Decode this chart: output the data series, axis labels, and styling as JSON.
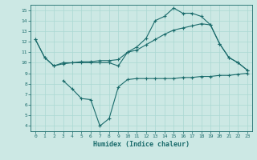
{
  "bg_color": "#cce8e4",
  "line_color": "#1a6b6b",
  "grid_color": "#aad8d2",
  "xlabel": "Humidex (Indice chaleur)",
  "xlim": [
    -0.5,
    23.5
  ],
  "ylim": [
    3.5,
    15.5
  ],
  "yticks": [
    4,
    5,
    6,
    7,
    8,
    9,
    10,
    11,
    12,
    13,
    14,
    15
  ],
  "xticks": [
    0,
    1,
    2,
    3,
    4,
    5,
    6,
    7,
    8,
    9,
    10,
    11,
    12,
    13,
    14,
    15,
    16,
    17,
    18,
    19,
    20,
    21,
    22,
    23
  ],
  "line1_x": [
    0,
    1,
    2,
    3,
    4,
    5,
    6,
    7,
    8,
    9,
    10,
    11,
    12,
    13,
    14,
    15,
    16,
    17,
    18,
    19,
    20,
    21,
    22,
    23
  ],
  "line1_y": [
    12.2,
    10.5,
    9.7,
    10.0,
    10.0,
    10.0,
    10.0,
    10.0,
    10.0,
    9.7,
    11.0,
    11.5,
    12.3,
    14.0,
    14.4,
    15.2,
    14.7,
    14.7,
    14.4,
    13.6,
    11.8,
    10.5,
    10.0,
    9.3
  ],
  "line2_x": [
    0,
    1,
    2,
    3,
    4,
    5,
    6,
    7,
    8,
    9,
    10,
    11,
    12,
    13,
    14,
    15,
    16,
    17,
    18,
    19,
    20,
    21,
    22,
    23
  ],
  "line2_y": [
    12.2,
    10.5,
    9.7,
    9.9,
    10.0,
    10.1,
    10.1,
    10.2,
    10.2,
    10.3,
    11.0,
    11.2,
    11.7,
    12.2,
    12.7,
    13.1,
    13.3,
    13.5,
    13.7,
    13.6,
    11.8,
    10.5,
    10.0,
    9.3
  ],
  "line3_x": [
    3,
    4,
    5,
    6,
    7,
    8,
    9,
    10,
    11,
    12,
    13,
    14,
    15,
    16,
    17,
    18,
    19,
    20,
    21,
    22,
    23
  ],
  "line3_y": [
    8.3,
    7.5,
    6.6,
    6.5,
    4.0,
    4.7,
    7.7,
    8.4,
    8.5,
    8.5,
    8.5,
    8.5,
    8.5,
    8.6,
    8.6,
    8.7,
    8.7,
    8.8,
    8.8,
    8.9,
    9.0
  ]
}
